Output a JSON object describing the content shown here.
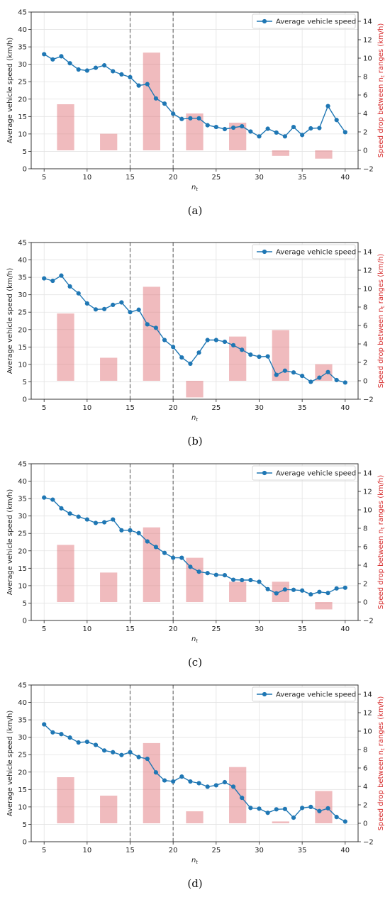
{
  "chart_data": [
    {
      "type": "bar+line",
      "caption": "(a)",
      "xlabel": "n",
      "xlabel_sub": "t",
      "ylabel": "Average vehicle speed (km/h)",
      "ylabel_right": "Speed drop between n",
      "ylabel_right_sub": "t",
      "ylabel_right_tail": " ranges (km/h)",
      "legend": "Average vehicle speed",
      "legend_position": "top-right",
      "xlim": [
        3.5,
        41.5
      ],
      "ylim": [
        0,
        45
      ],
      "ylim_right": [
        -2,
        15
      ],
      "xticks": [
        "5",
        "10",
        "15",
        "20",
        "25",
        "30",
        "35",
        "40"
      ],
      "yticks": [
        "0",
        "5",
        "10",
        "15",
        "20",
        "25",
        "30",
        "35",
        "40",
        "45"
      ],
      "yticks_right": [
        "−2",
        "0",
        "2",
        "4",
        "6",
        "8",
        "10",
        "12",
        "14"
      ],
      "vlines": [
        15,
        20
      ],
      "grid": true,
      "line": {
        "x": [
          5,
          6,
          7,
          8,
          9,
          10,
          11,
          12,
          13,
          14,
          15,
          16,
          17,
          18,
          19,
          20,
          21,
          22,
          23,
          24,
          25,
          26,
          27,
          28,
          29,
          30,
          31,
          32,
          33,
          34,
          35,
          36,
          37,
          38,
          39,
          40
        ],
        "y": [
          32.9,
          31.4,
          32.3,
          30.3,
          28.5,
          28.2,
          29.0,
          29.7,
          28.0,
          27.1,
          26.3,
          23.9,
          24.3,
          20.2,
          18.7,
          15.8,
          14.3,
          14.5,
          14.5,
          12.5,
          12.0,
          11.4,
          11.8,
          12.2,
          10.7,
          9.3,
          11.5,
          10.4,
          9.3,
          12.0,
          9.7,
          11.6,
          11.7,
          18.0,
          14.0,
          10.5
        ]
      },
      "bars": {
        "x": [
          7.5,
          12.5,
          17.5,
          22.5,
          27.5,
          32.5,
          37.5
        ],
        "values": [
          5.0,
          1.8,
          10.6,
          4.0,
          3.0,
          -0.6,
          -0.9
        ]
      }
    },
    {
      "type": "bar+line",
      "caption": "(b)",
      "xlabel": "n",
      "xlabel_sub": "t",
      "ylabel": "Average vehicle speed (km/h)",
      "ylabel_right": "Speed drop between n",
      "ylabel_right_sub": "t",
      "ylabel_right_tail": " ranges (km/h)",
      "legend": "Average vehicle speed",
      "legend_position": "top-right",
      "xlim": [
        3.5,
        41.5
      ],
      "ylim": [
        0,
        45
      ],
      "ylim_right": [
        -2,
        15
      ],
      "xticks": [
        "5",
        "10",
        "15",
        "20",
        "25",
        "30",
        "35",
        "40"
      ],
      "yticks": [
        "0",
        "5",
        "10",
        "15",
        "20",
        "25",
        "30",
        "35",
        "40",
        "45"
      ],
      "yticks_right": [
        "−2",
        "0",
        "2",
        "4",
        "6",
        "8",
        "10",
        "12",
        "14"
      ],
      "vlines": [
        15,
        20
      ],
      "grid": true,
      "line": {
        "x": [
          5,
          6,
          7,
          8,
          9,
          10,
          11,
          12,
          13,
          14,
          15,
          16,
          17,
          18,
          19,
          20,
          21,
          22,
          23,
          24,
          25,
          26,
          27,
          28,
          29,
          30,
          31,
          32,
          33,
          34,
          35,
          36,
          37,
          38,
          39,
          40
        ],
        "y": [
          34.7,
          34.0,
          35.5,
          32.4,
          30.4,
          27.5,
          25.8,
          25.9,
          27.1,
          27.8,
          25.0,
          25.7,
          21.5,
          20.5,
          17.0,
          15.0,
          12.0,
          10.2,
          13.4,
          17.0,
          17.0,
          16.5,
          15.5,
          14.2,
          12.8,
          12.2,
          12.3,
          7.0,
          8.2,
          7.7,
          6.7,
          5.0,
          6.2,
          7.8,
          5.5,
          4.8
        ]
      },
      "bars": {
        "x": [
          7.5,
          12.5,
          17.5,
          22.5,
          27.5,
          32.5,
          37.5
        ],
        "values": [
          7.3,
          2.5,
          10.2,
          -1.8,
          4.8,
          5.5,
          1.8
        ]
      }
    },
    {
      "type": "bar+line",
      "caption": "(c)",
      "xlabel": "n",
      "xlabel_sub": "t",
      "ylabel": "Average vehicle speed (km/h)",
      "ylabel_right": "Speed drop between n",
      "ylabel_right_sub": "t",
      "ylabel_right_tail": " ranges (km/h)",
      "legend": "Average vehicle speed",
      "legend_position": "top-right",
      "xlim": [
        3.5,
        41.5
      ],
      "ylim": [
        0,
        45
      ],
      "ylim_right": [
        -2,
        15
      ],
      "xticks": [
        "5",
        "10",
        "15",
        "20",
        "25",
        "30",
        "35",
        "40"
      ],
      "yticks": [
        "0",
        "5",
        "10",
        "15",
        "20",
        "25",
        "30",
        "35",
        "40",
        "45"
      ],
      "yticks_right": [
        "−2",
        "0",
        "2",
        "4",
        "6",
        "8",
        "10",
        "12",
        "14"
      ],
      "vlines": [
        15,
        20
      ],
      "grid": true,
      "line": {
        "x": [
          5,
          6,
          7,
          8,
          9,
          10,
          11,
          12,
          13,
          14,
          15,
          16,
          17,
          18,
          19,
          20,
          21,
          22,
          23,
          24,
          25,
          26,
          27,
          28,
          29,
          30,
          31,
          32,
          33,
          34,
          35,
          36,
          37,
          38,
          39,
          40
        ],
        "y": [
          35.3,
          34.7,
          32.2,
          30.7,
          29.8,
          29.0,
          28.0,
          28.2,
          29.0,
          25.9,
          25.9,
          25.1,
          22.7,
          21.1,
          19.4,
          18.0,
          18.0,
          15.4,
          14.0,
          13.6,
          13.1,
          13.0,
          11.7,
          11.6,
          11.6,
          11.1,
          9.0,
          7.8,
          8.9,
          8.8,
          8.6,
          7.5,
          8.2,
          7.9,
          9.2,
          9.4
        ]
      },
      "bars": {
        "x": [
          7.5,
          12.5,
          17.5,
          22.5,
          27.5,
          32.5,
          37.5
        ],
        "values": [
          6.2,
          3.2,
          8.1,
          4.8,
          2.2,
          2.2,
          -0.8
        ]
      }
    },
    {
      "type": "bar+line",
      "caption": "(d)",
      "xlabel": "n",
      "xlabel_sub": "t",
      "ylabel": "Average vehicle speed (km/h)",
      "ylabel_right": "Speed drop between n",
      "ylabel_right_sub": "t",
      "ylabel_right_tail": " ranges (km/h)",
      "legend": "Average vehicle speed",
      "legend_position": "top-right",
      "xlim": [
        3.5,
        41.5
      ],
      "ylim": [
        0,
        45
      ],
      "ylim_right": [
        -2,
        15
      ],
      "xticks": [
        "5",
        "10",
        "15",
        "20",
        "25",
        "30",
        "35",
        "40"
      ],
      "yticks": [
        "0",
        "5",
        "10",
        "15",
        "20",
        "25",
        "30",
        "35",
        "40",
        "45"
      ],
      "yticks_right": [
        "−2",
        "0",
        "2",
        "4",
        "6",
        "8",
        "10",
        "12",
        "14"
      ],
      "vlines": [
        15,
        20
      ],
      "grid": true,
      "line": {
        "x": [
          5,
          6,
          7,
          8,
          9,
          10,
          11,
          12,
          13,
          14,
          15,
          16,
          17,
          18,
          19,
          20,
          21,
          22,
          23,
          24,
          25,
          26,
          27,
          28,
          29,
          30,
          31,
          32,
          33,
          34,
          35,
          36,
          37,
          38,
          39,
          40
        ],
        "y": [
          33.7,
          31.4,
          30.9,
          29.9,
          28.5,
          28.7,
          27.8,
          26.2,
          25.7,
          24.9,
          25.7,
          24.3,
          23.8,
          19.9,
          17.6,
          17.3,
          18.7,
          17.3,
          16.8,
          15.8,
          16.2,
          17.1,
          15.8,
          12.6,
          9.7,
          9.5,
          8.3,
          9.3,
          9.4,
          6.9,
          9.7,
          10.0,
          8.8,
          9.6,
          7.1,
          5.8
        ]
      },
      "bars": {
        "x": [
          7.5,
          12.5,
          17.5,
          22.5,
          27.5,
          32.5,
          37.5
        ],
        "values": [
          5.0,
          3.0,
          8.7,
          1.3,
          6.1,
          0.2,
          3.5
        ]
      }
    }
  ]
}
